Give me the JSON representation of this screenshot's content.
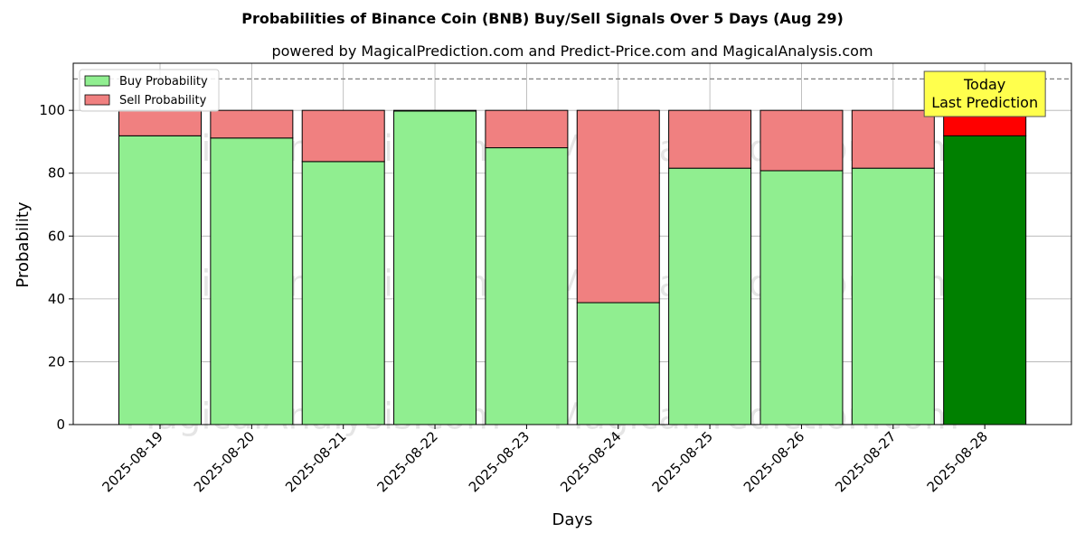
{
  "chart_data": {
    "type": "bar",
    "stacked": true,
    "title": "Probabilities of Binance Coin (BNB) Buy/Sell Signals Over 5 Days (Aug 29)",
    "subtitle": "powered by MagicalPrediction.com and Predict-Price.com and MagicalAnalysis.com",
    "xlabel": "Days",
    "ylabel": "Probability",
    "ylim": [
      0,
      115
    ],
    "yticks": [
      0,
      20,
      40,
      60,
      80,
      100
    ],
    "grid": true,
    "legend_position": "top-left",
    "threshold_line": 110,
    "categories": [
      "2025-08-19",
      "2025-08-20",
      "2025-08-21",
      "2025-08-22",
      "2025-08-23",
      "2025-08-24",
      "2025-08-25",
      "2025-08-26",
      "2025-08-27",
      "2025-08-28"
    ],
    "series": [
      {
        "name": "Buy Probability",
        "values": [
          91.9,
          91.2,
          83.7,
          99.8,
          88.1,
          38.8,
          81.6,
          80.8,
          81.6,
          91.9
        ],
        "color": "#90ee90",
        "highlight_color": "#008000"
      },
      {
        "name": "Sell Probability",
        "values": [
          8.1,
          8.8,
          16.3,
          0.2,
          11.9,
          61.2,
          18.4,
          19.2,
          18.4,
          8.1
        ],
        "color": "#f08080",
        "highlight_color": "#ff0000"
      }
    ],
    "highlight_index": 9,
    "annotation": {
      "lines": [
        "Today",
        "Last Prediction"
      ],
      "box_color": "#ffff4d",
      "target_index": 9
    },
    "watermarks": [
      "MagicalAnalysis.com",
      "MagicalPrediction.com"
    ]
  }
}
